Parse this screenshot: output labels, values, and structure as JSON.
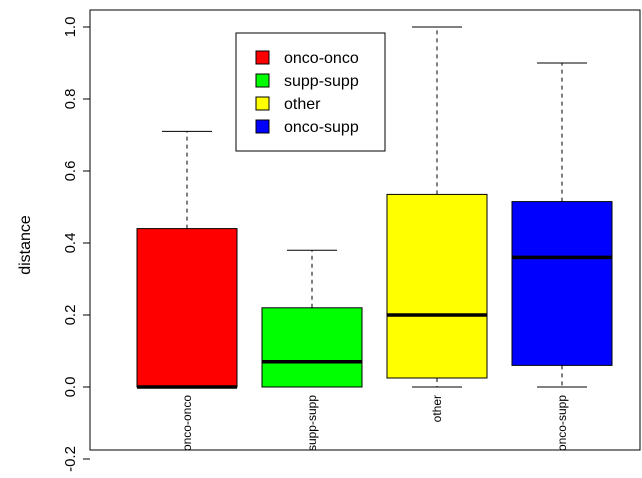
{
  "chart_data": {
    "type": "boxplot",
    "title": "",
    "xlabel": "",
    "ylabel": "distance",
    "ylim": [
      -0.22,
      1.05
    ],
    "yticks": [
      -0.2,
      0.0,
      0.2,
      0.4,
      0.6,
      0.8,
      1.0
    ],
    "ytick_labels": [
      "-0.2",
      "0.0",
      "0.2",
      "0.4",
      "0.6",
      "0.8",
      "1.0"
    ],
    "categories": [
      "onco-onco",
      "supp-supp",
      "other",
      "onco-supp"
    ],
    "boxes": [
      {
        "name": "onco-onco",
        "color": "#ff0000",
        "whisker_low": 0.0,
        "q1": 0.0,
        "median": 0.0,
        "q3": 0.44,
        "whisker_high": 0.71
      },
      {
        "name": "supp-supp",
        "color": "#00ff00",
        "whisker_low": 0.0,
        "q1": 0.0,
        "median": 0.07,
        "q3": 0.22,
        "whisker_high": 0.38
      },
      {
        "name": "other",
        "color": "#ffff00",
        "whisker_low": 0.0,
        "q1": 0.025,
        "median": 0.2,
        "q3": 0.535,
        "whisker_high": 1.0
      },
      {
        "name": "onco-supp",
        "color": "#0000ff",
        "whisker_low": 0.0,
        "q1": 0.06,
        "median": 0.36,
        "q3": 0.515,
        "whisker_high": 0.9
      }
    ],
    "legend": {
      "position": "top-center",
      "entries": [
        {
          "label": "onco-onco",
          "color": "#ff0000"
        },
        {
          "label": "supp-supp",
          "color": "#00ff00"
        },
        {
          "label": "other",
          "color": "#ffff00"
        },
        {
          "label": "onco-supp",
          "color": "#0000ff"
        }
      ]
    },
    "grid": false
  }
}
